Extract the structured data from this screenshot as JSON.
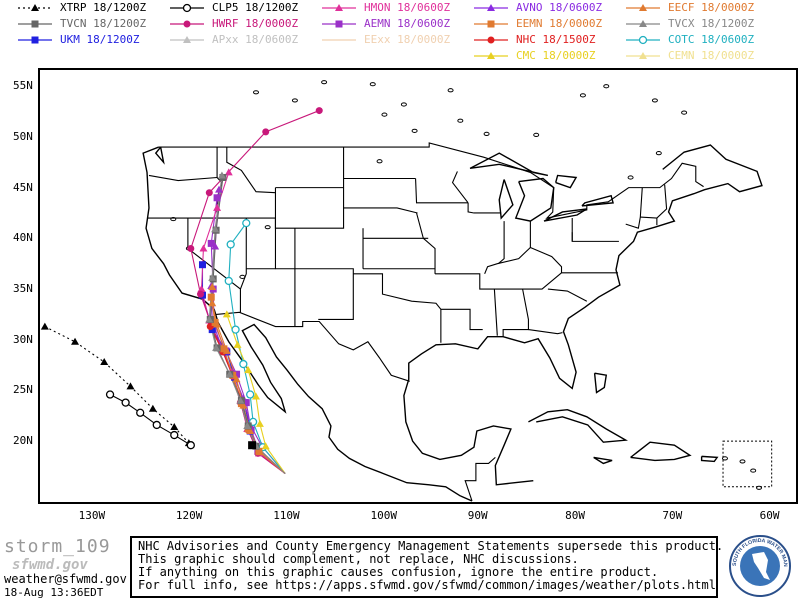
{
  "legend": [
    {
      "label": "XTRP  18/1200Z",
      "color": "#000000",
      "marker": "triangle",
      "dash": "2,3"
    },
    {
      "label": "CLP5  18/1200Z",
      "color": "#000000",
      "marker": "circle-open",
      "dash": ""
    },
    {
      "label": "HMON  18/0600Z",
      "color": "#e0309a",
      "marker": "triangle",
      "dash": ""
    },
    {
      "label": "AVNO  18/0600Z",
      "color": "#8a2be2",
      "marker": "triangle",
      "dash": ""
    },
    {
      "label": "EECF  18/0000Z",
      "color": "#e07a30",
      "marker": "triangle",
      "dash": ""
    },
    {
      "label": "TVCN  18/1200Z",
      "color": "#666666",
      "marker": "square",
      "dash": ""
    },
    {
      "label": "HWRF  18/0000Z",
      "color": "#c8187a",
      "marker": "circle",
      "dash": ""
    },
    {
      "label": "AEMN  18/0600Z",
      "color": "#9a30c8",
      "marker": "square",
      "dash": ""
    },
    {
      "label": "EEMN  18/0000Z",
      "color": "#e07a30",
      "marker": "square",
      "dash": ""
    },
    {
      "label": "TVCX  18/1200Z",
      "color": "#888888",
      "marker": "triangle",
      "dash": ""
    },
    {
      "label": "UKM   18/1200Z",
      "color": "#2020e0",
      "marker": "square",
      "dash": ""
    },
    {
      "label": "APxx  18/0600Z",
      "color": "#c0c0c0",
      "marker": "triangle",
      "dash": ""
    },
    {
      "label": "EExx  18/0000Z",
      "color": "#f0d0b0",
      "marker": "none",
      "dash": ""
    },
    {
      "label": "NHC  18/1500Z",
      "color": "#e02020",
      "marker": "circle",
      "dash": ""
    },
    {
      "label": "COTC  18/0600Z",
      "color": "#20b0c0",
      "marker": "circle-open",
      "dash": ""
    },
    {
      "label": "CMC   18/0000Z",
      "color": "#e8d020",
      "marker": "triangle",
      "dash": ""
    },
    {
      "label": "CEMN  18/0000Z",
      "color": "#f0e090",
      "marker": "triangle",
      "dash": ""
    }
  ],
  "map": {
    "lat_labels": [
      "55N",
      "50N",
      "45N",
      "40N",
      "35N",
      "30N",
      "25N",
      "20N"
    ],
    "lon_labels": [
      "130W",
      "120W",
      "110W",
      "100W",
      "90W",
      "80W",
      "70W",
      "60W"
    ]
  },
  "tracks": [
    {
      "color": "#000000",
      "marker": "triangle",
      "dash": "2,3",
      "pts": [
        [
          -134.7,
          31.3
        ],
        [
          -131.6,
          29.8
        ],
        [
          -128.6,
          27.8
        ],
        [
          -125.9,
          25.4
        ],
        [
          -123.6,
          23.2
        ],
        [
          -121.4,
          21.4
        ],
        [
          -119.9,
          19.8
        ]
      ]
    },
    {
      "color": "#000000",
      "marker": "circle-open",
      "dash": "",
      "pts": [
        [
          -119.7,
          19.6
        ],
        [
          -121.4,
          20.6
        ],
        [
          -123.2,
          21.6
        ],
        [
          -124.9,
          22.8
        ],
        [
          -126.4,
          23.8
        ],
        [
          -128.0,
          24.6
        ]
      ]
    },
    {
      "color": "#2020e0",
      "marker": "square",
      "dash": "",
      "pts": [
        [
          -110.0,
          16.8
        ],
        [
          -112.8,
          19.0
        ],
        [
          -113.6,
          21.0
        ],
        [
          -114.2,
          23.8
        ],
        [
          -115.2,
          26.3
        ],
        [
          -116.0,
          28.8
        ],
        [
          -117.5,
          31.0
        ],
        [
          -118.5,
          34.4
        ],
        [
          -118.5,
          37.4
        ]
      ]
    },
    {
      "color": "#9a30c8",
      "marker": "triangle",
      "dash": "",
      "pts": [
        [
          -110.0,
          16.8
        ],
        [
          -112.4,
          19.5
        ],
        [
          -113.6,
          21.6
        ],
        [
          -114.3,
          24.2
        ],
        [
          -115.4,
          26.8
        ],
        [
          -116.4,
          29.0
        ],
        [
          -117.5,
          31.8
        ],
        [
          -117.6,
          35.3
        ],
        [
          -117.2,
          39.2
        ],
        [
          -116.8,
          44.8
        ]
      ]
    },
    {
      "color": "#9a30c8",
      "marker": "square",
      "dash": "",
      "pts": [
        [
          -110.0,
          16.8
        ],
        [
          -112.8,
          19.3
        ],
        [
          -113.5,
          21.1
        ],
        [
          -114.0,
          23.8
        ],
        [
          -115.0,
          26.6
        ],
        [
          -116.1,
          28.9
        ],
        [
          -117.3,
          31.6
        ],
        [
          -117.4,
          35.0
        ],
        [
          -117.6,
          39.5
        ],
        [
          -117.0,
          44.0
        ]
      ]
    },
    {
      "color": "#e0309a",
      "marker": "triangle",
      "dash": "",
      "pts": [
        [
          -110.0,
          16.8
        ],
        [
          -112.7,
          18.8
        ],
        [
          -113.9,
          21.2
        ],
        [
          -114.6,
          24.0
        ],
        [
          -115.5,
          26.8
        ],
        [
          -116.6,
          29.2
        ],
        [
          -117.8,
          31.9
        ],
        [
          -118.6,
          35.0
        ],
        [
          -118.4,
          39.0
        ],
        [
          -117.0,
          43.0
        ],
        [
          -115.8,
          46.5
        ]
      ]
    },
    {
      "color": "#c8187a",
      "marker": "circle",
      "dash": "",
      "pts": [
        [
          -110.0,
          16.8
        ],
        [
          -112.8,
          18.8
        ],
        [
          -113.8,
          21.1
        ],
        [
          -114.6,
          23.8
        ],
        [
          -115.4,
          26.4
        ],
        [
          -116.4,
          28.8
        ],
        [
          -117.6,
          31.5
        ],
        [
          -118.7,
          34.5
        ],
        [
          -119.7,
          39.0
        ],
        [
          -117.8,
          44.5
        ],
        [
          -112.0,
          50.5
        ],
        [
          -106.5,
          52.6
        ]
      ]
    },
    {
      "color": "#e02020",
      "marker": "circle",
      "dash": "",
      "pts": [
        [
          -110.0,
          16.8
        ],
        [
          -113.0,
          19.5
        ],
        [
          -113.8,
          21.5
        ],
        [
          -114.5,
          24.0
        ],
        [
          -115.4,
          26.5
        ],
        [
          -116.4,
          28.8
        ],
        [
          -117.7,
          31.3
        ]
      ]
    },
    {
      "color": "#20b0c0",
      "marker": "circle-open",
      "dash": "",
      "pts": [
        [
          -110.0,
          16.8
        ],
        [
          -112.3,
          19.4
        ],
        [
          -113.3,
          21.9
        ],
        [
          -113.6,
          24.6
        ],
        [
          -114.3,
          27.6
        ],
        [
          -115.1,
          31.0
        ],
        [
          -115.8,
          35.8
        ],
        [
          -115.6,
          39.4
        ],
        [
          -114.0,
          41.5
        ]
      ]
    },
    {
      "color": "#e8d020",
      "marker": "triangle",
      "dash": "",
      "pts": [
        [
          -110.0,
          16.8
        ],
        [
          -112.0,
          19.5
        ],
        [
          -112.6,
          21.7
        ],
        [
          -113.0,
          24.4
        ],
        [
          -113.8,
          27.0
        ],
        [
          -114.9,
          29.5
        ],
        [
          -116.0,
          32.5
        ]
      ]
    },
    {
      "color": "#e07a30",
      "marker": "triangle",
      "dash": "",
      "pts": [
        [
          -110.0,
          16.8
        ],
        [
          -112.6,
          18.9
        ],
        [
          -113.6,
          21.0
        ],
        [
          -114.3,
          23.5
        ],
        [
          -115.0,
          26.1
        ],
        [
          -116.0,
          28.9
        ],
        [
          -117.0,
          31.5
        ],
        [
          -117.5,
          33.6
        ],
        [
          -117.5,
          35.2
        ]
      ]
    },
    {
      "color": "#e07a30",
      "marker": "square",
      "dash": "",
      "pts": [
        [
          -110.0,
          16.8
        ],
        [
          -112.7,
          19.0
        ],
        [
          -113.8,
          21.2
        ],
        [
          -114.5,
          23.7
        ],
        [
          -115.4,
          26.5
        ],
        [
          -116.3,
          29.1
        ],
        [
          -117.2,
          31.7
        ],
        [
          -117.6,
          34.2
        ]
      ]
    },
    {
      "color": "#666666",
      "marker": "square",
      "dash": "",
      "pts": [
        [
          -110.0,
          16.8
        ],
        [
          -113.0,
          19.5
        ],
        [
          -113.8,
          21.5
        ],
        [
          -114.5,
          24.0
        ],
        [
          -115.7,
          26.6
        ],
        [
          -117.0,
          29.2
        ],
        [
          -117.7,
          32.0
        ],
        [
          -117.4,
          36.0
        ],
        [
          -117.1,
          40.8
        ],
        [
          -116.4,
          46.0
        ]
      ]
    },
    {
      "color": "#888888",
      "marker": "triangle",
      "dash": "",
      "pts": [
        [
          -110.0,
          16.8
        ],
        [
          -113.0,
          19.5
        ],
        [
          -113.9,
          21.5
        ],
        [
          -114.6,
          24.0
        ],
        [
          -115.7,
          26.6
        ],
        [
          -117.1,
          29.2
        ],
        [
          -117.8,
          32.0
        ],
        [
          -117.5,
          36.1
        ],
        [
          -117.2,
          40.9
        ],
        [
          -116.5,
          46.2
        ]
      ]
    }
  ],
  "footer": {
    "storm_name": "storm_109",
    "logo_text": "sfwmd.gov",
    "email": "weather@sfwmd.gov",
    "timestamp": "18-Aug 13:36EDT",
    "disclaimer": [
      "NHC Advisories and County Emergency Management Statements supersede this product.",
      "This graphic should complement, not replace, NHC discussions.",
      "If anything on this graphic causes confusion, ignore the entire product.",
      "For full info, see  https://apps.sfwmd.gov/sfwmd/common/images/weather/plots.html"
    ],
    "seal_text": "SOUTH FLORIDA WATER MANAGEMENT DISTRICT"
  }
}
